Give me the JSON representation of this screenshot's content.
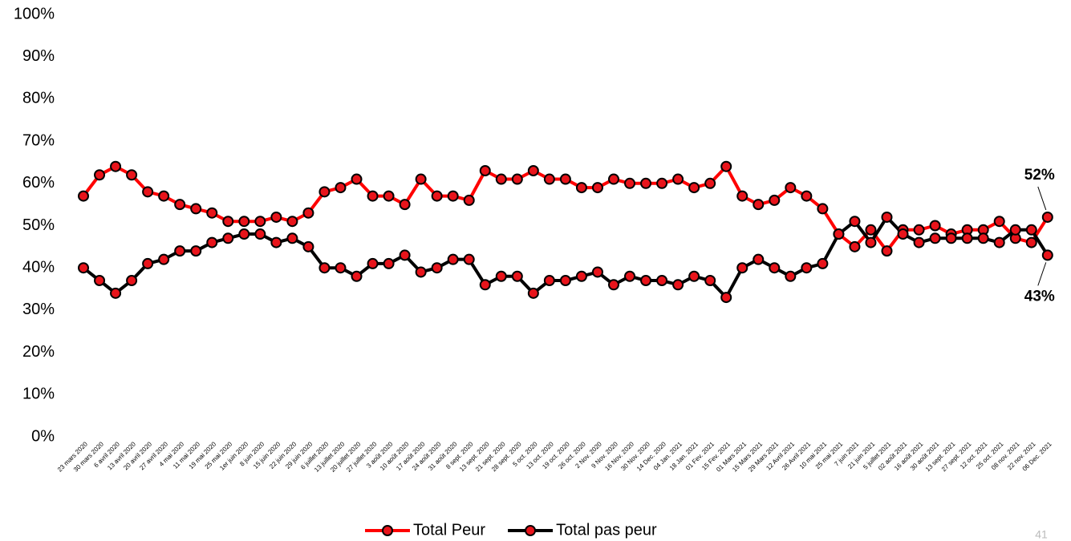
{
  "chart_data": {
    "type": "line",
    "categories": [
      "23 mars 2020",
      "30 mars 2020",
      "6 avril 2020",
      "13 avril 2020",
      "20 avril 2020",
      "27 avril 2020",
      "4 mai 2020",
      "11 mai 2020",
      "19 mai 2020",
      "25 mai 2020",
      "1er juin 2020",
      "8 juin 2020",
      "15 juin 2020",
      "22 juin 2020",
      "29 juin 2020",
      "6 juillet 2020",
      "13 juillet 2020",
      "20 juillet 2020",
      "27 juillet 2020",
      "3 août 2020",
      "10 août 2020",
      "17 août 2020",
      "24 août 2020",
      "31 août 2020",
      "8 sept. 2020",
      "13 sept. 2020",
      "21 sept. 2020",
      "28 sept. 2020",
      "5 oct. 2020",
      "13 oct. 2020",
      "19 oct. 2020",
      "26 oct. 2020",
      "2 Nov. 2020",
      "9 Nov. 2020",
      "16 Nov. 2020",
      "30 Nov. 2020",
      "14 Dec. 2020",
      "04 Jan. 2021",
      "18 Jan. 2021",
      "01 Fev. 2021",
      "15 Fev. 2021",
      "01 Mars 2021",
      "15 Mars 2021",
      "29 Mars 2021",
      "12 Avril 2021",
      "26 Avril 2021",
      "10 mai 2021",
      "25 mai 2021",
      "7 juin 2021",
      "21 juin 2021",
      "5 juillet 2021",
      "02 août 2021",
      "16 août 2021",
      "30 août 2021",
      "13 sept. 2021",
      "27 sept. 2021",
      "12 oct. 2021",
      "25 oct. 2021",
      "08 nov. 2021",
      "22 nov. 2021",
      "06 Dec. 2021"
    ],
    "series": [
      {
        "name": "Total Peur",
        "color": "#ff0000",
        "values": [
          57,
          62,
          64,
          62,
          58,
          57,
          55,
          54,
          53,
          51,
          51,
          51,
          52,
          51,
          53,
          58,
          59,
          61,
          57,
          57,
          55,
          61,
          57,
          57,
          56,
          63,
          61,
          61,
          63,
          61,
          61,
          59,
          59,
          61,
          60,
          60,
          60,
          61,
          59,
          60,
          64,
          57,
          55,
          56,
          59,
          57,
          54,
          48,
          45,
          49,
          44,
          49,
          49,
          50,
          48,
          49,
          49,
          51,
          47,
          46,
          52
        ],
        "value_labels": [
          null,
          null,
          null,
          null,
          null,
          null,
          null,
          null,
          null,
          null,
          null,
          null,
          null,
          null,
          null,
          null,
          null,
          null,
          null,
          null,
          null,
          null,
          null,
          null,
          null,
          null,
          null,
          null,
          null,
          null,
          null,
          null,
          null,
          null,
          null,
          null,
          null,
          null,
          null,
          null,
          null,
          null,
          null,
          null,
          null,
          null,
          null,
          null,
          null,
          null,
          null,
          null,
          null,
          null,
          null,
          null,
          null,
          null,
          null,
          null,
          "52%"
        ]
      },
      {
        "name": "Total pas peur",
        "color": "#000000",
        "values": [
          40,
          37,
          34,
          37,
          41,
          42,
          44,
          44,
          46,
          47,
          48,
          48,
          46,
          47,
          45,
          40,
          40,
          38,
          41,
          41,
          43,
          39,
          40,
          42,
          42,
          36,
          38,
          38,
          34,
          37,
          37,
          38,
          39,
          36,
          38,
          37,
          37,
          36,
          38,
          37,
          33,
          40,
          42,
          40,
          38,
          40,
          41,
          48,
          51,
          46,
          52,
          48,
          46,
          47,
          47,
          47,
          47,
          46,
          49,
          49,
          43
        ],
        "value_labels": [
          null,
          null,
          null,
          null,
          null,
          null,
          null,
          null,
          null,
          null,
          null,
          null,
          null,
          null,
          null,
          null,
          null,
          null,
          null,
          null,
          null,
          null,
          null,
          null,
          null,
          null,
          null,
          null,
          null,
          null,
          null,
          null,
          null,
          null,
          null,
          null,
          null,
          null,
          null,
          null,
          null,
          null,
          null,
          null,
          null,
          null,
          null,
          null,
          null,
          null,
          null,
          null,
          null,
          null,
          null,
          null,
          null,
          null,
          null,
          null,
          "43%"
        ]
      }
    ],
    "marker_color": "#e8141b",
    "ylim": [
      0,
      100
    ],
    "yticks": [
      {
        "value": 0,
        "label": "0%"
      },
      {
        "value": 10,
        "label": "10%"
      },
      {
        "value": 20,
        "label": "20%"
      },
      {
        "value": 30,
        "label": "30%"
      },
      {
        "value": 40,
        "label": "40%"
      },
      {
        "value": 50,
        "label": "50%"
      },
      {
        "value": 60,
        "label": "60%"
      },
      {
        "value": 70,
        "label": "70%"
      },
      {
        "value": 80,
        "label": "80%"
      },
      {
        "value": 90,
        "label": "90%"
      },
      {
        "value": 100,
        "label": "100%"
      }
    ],
    "legend": "bottom",
    "page_number": "41"
  }
}
